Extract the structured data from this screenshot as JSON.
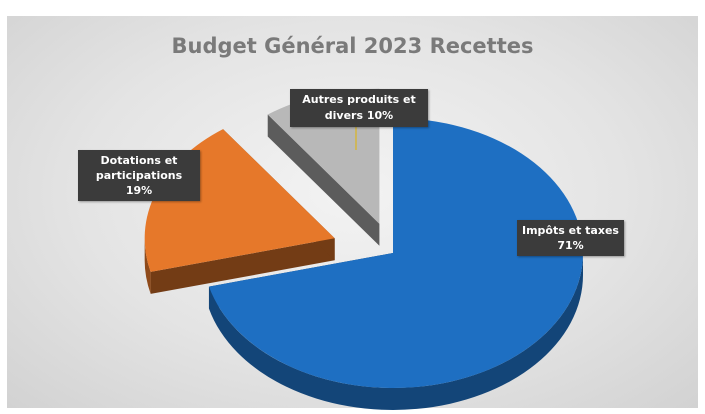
{
  "chart_data": {
    "type": "pie",
    "title": "Budget Général 2023 Recettes",
    "slices": [
      {
        "label": "Impôts et taxes",
        "value": 71,
        "value_label": "71%",
        "color": "#1e6fc2"
      },
      {
        "label": "Dotations et participations",
        "value": 19,
        "value_label": "19%",
        "color": "#e6782a"
      },
      {
        "label": "Autres produits et divers",
        "value": 10,
        "value_label": "10%",
        "color": "#b8b8b8"
      }
    ],
    "style": "3d-exploded",
    "legend": "none"
  }
}
